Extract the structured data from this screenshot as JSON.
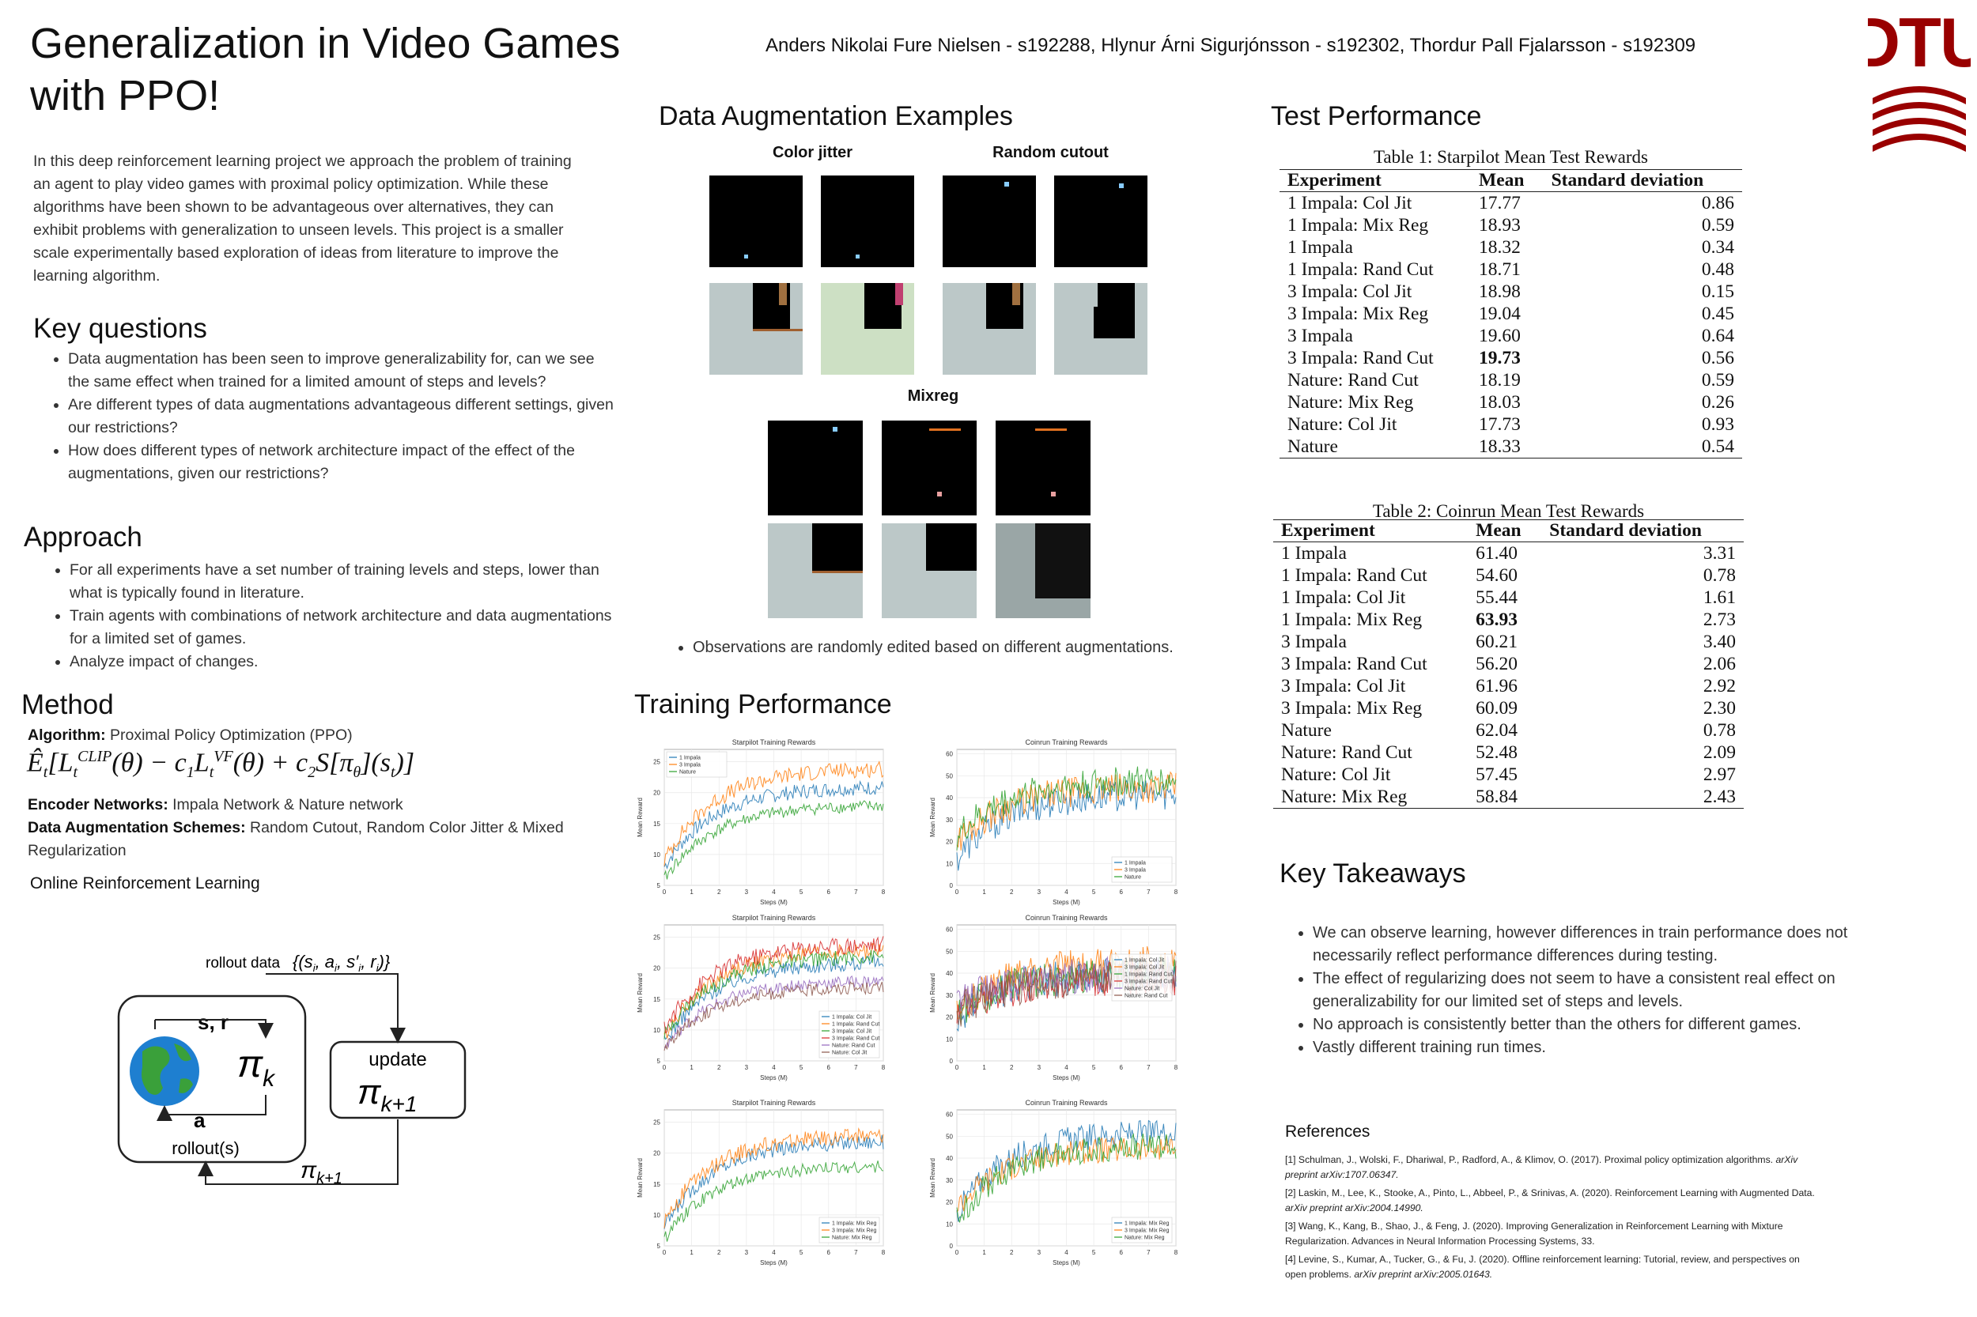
{
  "header": {
    "title": "Generalization in Video Games with PPO!",
    "authors": "Anders Nikolai Fure Nielsen - s192288, Hlynur Árni Sigurjónsson - s192302, Thordur Pall Fjalarsson - s192309",
    "logo_text": "DTU",
    "logo_color": "#990000"
  },
  "intro": "In this deep reinforcement learning project we approach the problem of training an agent to play video games with proximal policy optimization. While these algorithms have been shown to be advantageous over alternatives, they can exhibit problems with generalization to unseen levels. This project is a smaller scale experimentally based exploration of ideas from literature to improve the learning algorithm.",
  "key_questions": {
    "heading": "Key questions",
    "items": [
      "Data augmentation has been seen to improve generalizability for, can we see the same effect when trained for a limited amount of steps and levels?",
      "Are different types of data augmentations advantageous different settings, given our restrictions?",
      "How does different types of network architecture impact of the effect of the augmentations, given our restrictions?"
    ]
  },
  "approach": {
    "heading": "Approach",
    "items": [
      "For all experiments have a set number of training levels and steps, lower than what is typically found in literature.",
      "Train agents with combinations of network architecture and data augmentations for a limited set of games.",
      "Analyze impact of changes."
    ]
  },
  "method": {
    "heading": "Method",
    "algorithm_label": "Algorithm:",
    "algorithm_value": "Proximal Policy Optimization (PPO)",
    "encoder_label": "Encoder Networks:",
    "encoder_value": "Impala Network & Nature network",
    "aug_label": "Data Augmentation Schemes:",
    "aug_value": "Random Cutout,  Random Color Jitter & Mixed Regularization",
    "online_rl": "Online Reinforcement Learning",
    "diagram": {
      "rollout_data": "rollout data",
      "sr": "s, r",
      "a": "a",
      "pi_k": "π",
      "pi_k_sub": "k",
      "update": "update",
      "pi_k1": "π",
      "pi_k1_sub": "k+1",
      "rollouts": "rollout(s)"
    }
  },
  "data_aug": {
    "heading": "Data Augmentation Examples",
    "color_jitter": "Color jitter",
    "random_cutout": "Random cutout",
    "mixreg": "Mixreg",
    "note": "Observations are randomly edited based on different augmentations."
  },
  "training": {
    "heading": "Training Performance"
  },
  "test": {
    "heading": "Test Performance",
    "table1": {
      "caption": "Table 1: Starpilot Mean Test Rewards",
      "headers": [
        "Experiment",
        "Mean",
        "Standard deviation"
      ],
      "rows": [
        [
          "1 Impala: Col Jit",
          "17.77",
          "0.86"
        ],
        [
          "1 Impala: Mix Reg",
          "18.93",
          "0.59"
        ],
        [
          "1 Impala",
          "18.32",
          "0.34"
        ],
        [
          "1 Impala: Rand Cut",
          "18.71",
          "0.48"
        ],
        [
          "3 Impala: Col Jit",
          "18.98",
          "0.15"
        ],
        [
          "3 Impala: Mix Reg",
          "19.04",
          "0.45"
        ],
        [
          "3 Impala",
          "19.60",
          "0.64"
        ],
        [
          "3 Impala: Rand Cut",
          "19.73",
          "0.56"
        ],
        [
          "Nature: Rand Cut",
          "18.19",
          "0.59"
        ],
        [
          "Nature: Mix Reg",
          "18.03",
          "0.26"
        ],
        [
          "Nature: Col Jit",
          "17.73",
          "0.93"
        ],
        [
          "Nature",
          "18.33",
          "0.54"
        ]
      ],
      "bold_row": 7
    },
    "table2": {
      "caption": "Table 2: Coinrun Mean Test Rewards",
      "headers": [
        "Experiment",
        "Mean",
        "Standard deviation"
      ],
      "rows": [
        [
          "1 Impala",
          "61.40",
          "3.31"
        ],
        [
          "1 Impala: Rand Cut",
          "54.60",
          "0.78"
        ],
        [
          "1 Impala: Col Jit",
          "55.44",
          "1.61"
        ],
        [
          "1 Impala: Mix Reg",
          "63.93",
          "2.73"
        ],
        [
          "3 Impala",
          "60.21",
          "3.40"
        ],
        [
          "3 Impala: Rand Cut",
          "56.20",
          "2.06"
        ],
        [
          "3 Impala: Col Jit",
          "61.96",
          "2.92"
        ],
        [
          "3 Impala: Mix Reg",
          "60.09",
          "2.30"
        ],
        [
          "Nature",
          "62.04",
          "0.78"
        ],
        [
          "Nature: Rand Cut",
          "52.48",
          "2.09"
        ],
        [
          "Nature: Col Jit",
          "57.45",
          "2.97"
        ],
        [
          "Nature: Mix Reg",
          "58.84",
          "2.43"
        ]
      ],
      "bold_row": 3
    }
  },
  "takeaways": {
    "heading": "Key Takeaways",
    "items": [
      "We can observe learning, however differences in train performance does not necessarily reflect performance differences during testing.",
      "The effect of regularizing does not seem to have a consistent real effect on generalizability for our limited set of steps and levels.",
      "No approach is consistently better than the others for different games.",
      "Vastly different training run times."
    ]
  },
  "references": {
    "heading": "References",
    "items": [
      {
        "text": "[1] Schulman, J., Wolski, F., Dhariwal, P., Radford, A., & Klimov, O. (2017). Proximal policy optimization algorithms. ",
        "ital": "arXiv preprint arXiv:1707.06347."
      },
      {
        "text": "[2]  Laskin, M., Lee, K., Stooke, A., Pinto, L., Abbeel, P., & Srinivas, A. (2020). Reinforcement Learning with Augmented Data. ",
        "ital": "arXiv preprint arXiv:2004.14990."
      },
      {
        "text": "[3] Wang, K., Kang, B., Shao, J., & Feng, J. (2020). Improving Generalization in Reinforcement Learning with Mixture Regularization. Advances in Neural Information Processing Systems, 33.",
        "ital": ""
      },
      {
        "text": "[4] Levine, S., Kumar, A., Tucker, G., & Fu, J. (2020). Offline reinforcement learning: Tutorial, review, and perspectives on open problems. ",
        "ital": "arXiv preprint arXiv:2005.01643."
      }
    ]
  },
  "chart_data": [
    {
      "type": "line",
      "title": "Starpilot Training Rewards",
      "xlabel": "Steps (M)",
      "ylabel": "Mean Reward",
      "xlim": [
        0,
        8
      ],
      "ylim": [
        5,
        27
      ],
      "yticks": [
        5,
        10,
        15,
        20,
        25
      ],
      "legend": "top-left",
      "series": [
        {
          "name": "1 Impala",
          "color": "#1f77b4",
          "start": 8,
          "end": 21,
          "noise": 1.2
        },
        {
          "name": "3 Impala",
          "color": "#ff7f0e",
          "start": 9,
          "end": 24,
          "noise": 1.3
        },
        {
          "name": "Nature",
          "color": "#2ca02c",
          "start": 6,
          "end": 18,
          "noise": 1.0
        }
      ]
    },
    {
      "type": "line",
      "title": "Coinrun Training Rewards",
      "xlabel": "Steps (M)",
      "ylabel": "Mean Reward",
      "xlim": [
        0,
        8
      ],
      "ylim": [
        0,
        62
      ],
      "yticks": [
        0,
        10,
        20,
        30,
        40,
        50,
        60
      ],
      "legend": "bottom-right",
      "series": [
        {
          "name": "1 Impala",
          "color": "#1f77b4",
          "start": 12,
          "end": 42,
          "noise": 7
        },
        {
          "name": "3 Impala",
          "color": "#ff7f0e",
          "start": 20,
          "end": 45,
          "noise": 7
        },
        {
          "name": "Nature",
          "color": "#2ca02c",
          "start": 22,
          "end": 48,
          "noise": 7
        }
      ]
    },
    {
      "type": "line",
      "title": "Starpilot Training Rewards",
      "xlabel": "Steps (M)",
      "ylabel": "Mean Reward",
      "xlim": [
        0,
        8
      ],
      "ylim": [
        5,
        27
      ],
      "yticks": [
        5,
        10,
        15,
        20,
        25
      ],
      "legend": "bottom-right",
      "series": [
        {
          "name": "1 Impala: Col Jit",
          "color": "#1f77b4",
          "start": 8,
          "end": 21,
          "noise": 1.2
        },
        {
          "name": "1 Impala: Rand Cut",
          "color": "#ff7f0e",
          "start": 9,
          "end": 23,
          "noise": 1.3
        },
        {
          "name": "3 Impala: Col Jit",
          "color": "#2ca02c",
          "start": 9,
          "end": 22,
          "noise": 1.2
        },
        {
          "name": "3 Impala: Rand Cut",
          "color": "#d62728",
          "start": 10,
          "end": 24,
          "noise": 1.4
        },
        {
          "name": "Nature: Rand Cut",
          "color": "#9467bd",
          "start": 7,
          "end": 18,
          "noise": 1.0
        },
        {
          "name": "Nature: Col Jit",
          "color": "#8c564b",
          "start": 7,
          "end": 17,
          "noise": 1.0
        }
      ]
    },
    {
      "type": "line",
      "title": "Coinrun Training Rewards",
      "xlabel": "Steps (M)",
      "ylabel": "Mean Reward",
      "xlim": [
        0,
        8
      ],
      "ylim": [
        0,
        62
      ],
      "yticks": [
        0,
        10,
        20,
        30,
        40,
        50,
        60
      ],
      "legend": "right",
      "series": [
        {
          "name": "1 Impala: Col Jit",
          "color": "#1f77b4",
          "start": 20,
          "end": 40,
          "noise": 8
        },
        {
          "name": "3 Impala: Col Jit",
          "color": "#ff7f0e",
          "start": 22,
          "end": 45,
          "noise": 8
        },
        {
          "name": "1 Impala: Rand Cut",
          "color": "#2ca02c",
          "start": 22,
          "end": 40,
          "noise": 8
        },
        {
          "name": "3 Impala: Rand Cut",
          "color": "#d62728",
          "start": 22,
          "end": 38,
          "noise": 8
        },
        {
          "name": "Nature: Col Jit",
          "color": "#9467bd",
          "start": 25,
          "end": 40,
          "noise": 8
        },
        {
          "name": "Nature: Rand Cut",
          "color": "#8c564b",
          "start": 22,
          "end": 38,
          "noise": 8
        }
      ]
    },
    {
      "type": "line",
      "title": "Starpilot Training Rewards",
      "xlabel": "Steps (M)",
      "ylabel": "Mean Reward",
      "xlim": [
        0,
        8
      ],
      "ylim": [
        5,
        27
      ],
      "yticks": [
        5,
        10,
        15,
        20,
        25
      ],
      "legend": "bottom-right",
      "series": [
        {
          "name": "1 Impala: Mix Reg",
          "color": "#1f77b4",
          "start": 8,
          "end": 22,
          "noise": 1.2
        },
        {
          "name": "3 Impala: Mix Reg",
          "color": "#ff7f0e",
          "start": 9,
          "end": 23,
          "noise": 1.3
        },
        {
          "name": "Nature: Mix Reg",
          "color": "#2ca02c",
          "start": 6,
          "end": 18,
          "noise": 1.0
        }
      ]
    },
    {
      "type": "line",
      "title": "Coinrun Training Rewards",
      "xlabel": "Steps (M)",
      "ylabel": "Mean Reward",
      "xlim": [
        0,
        8
      ],
      "ylim": [
        0,
        62
      ],
      "yticks": [
        0,
        10,
        20,
        30,
        40,
        50,
        60
      ],
      "legend": "bottom-right",
      "series": [
        {
          "name": "1 Impala: Mix Reg",
          "color": "#1f77b4",
          "start": 15,
          "end": 52,
          "noise": 6
        },
        {
          "name": "3 Impala: Mix Reg",
          "color": "#ff7f0e",
          "start": 18,
          "end": 45,
          "noise": 6
        },
        {
          "name": "Nature: Mix Reg",
          "color": "#2ca02c",
          "start": 12,
          "end": 46,
          "noise": 6
        }
      ]
    }
  ]
}
